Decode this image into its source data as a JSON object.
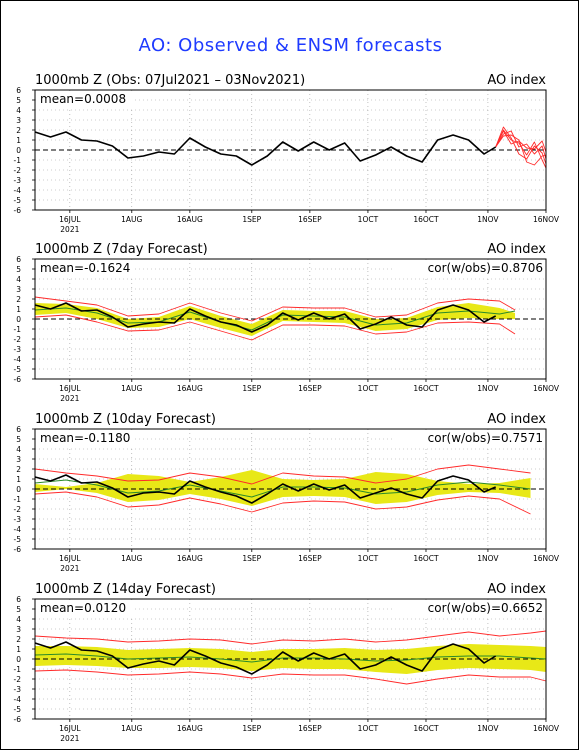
{
  "page": {
    "title": "AO: Observed & ENSM forecasts"
  },
  "colors": {
    "observed": "#000000",
    "forecast_member": "#ff2a2a",
    "ensemble_band": "#e8e817",
    "ensemble_mean": "#2a8a2a",
    "zero_line": "#000000",
    "grid": "#9a9a9a",
    "title": "#1f3bff"
  },
  "chart_data": [
    {
      "type": "line",
      "title": "1000mb Z (Obs: 07Jul2021 – 03Nov2021)",
      "index_label": "AO index",
      "mean_label": "mean=0.0008",
      "cor_label": "",
      "ylim": [
        -6,
        6
      ],
      "yticks": [
        "6",
        "5",
        "4",
        "3",
        "2",
        "1",
        "0",
        "-1",
        "-2",
        "-3",
        "-4",
        "-5",
        "-6"
      ],
      "xticks": [
        "16JUL",
        "1AUG",
        "16AUG",
        "1SEP",
        "16SEP",
        "1OCT",
        "16OCT",
        "1NOV",
        "16NOV"
      ],
      "xticks_day": [
        9,
        25,
        40,
        56,
        71,
        86,
        101,
        117,
        132
      ],
      "year_label": "2021",
      "xlim": [
        0,
        132
      ],
      "grid": true,
      "series": [
        {
          "role": "observed",
          "x": [
            0,
            4,
            8,
            12,
            16,
            20,
            24,
            28,
            32,
            36,
            40,
            44,
            48,
            52,
            56,
            60,
            64,
            68,
            72,
            76,
            80,
            84,
            88,
            92,
            96,
            100,
            104,
            108,
            112,
            116,
            119
          ],
          "values": [
            1.8,
            1.3,
            1.8,
            1.0,
            0.9,
            0.4,
            -0.8,
            -0.6,
            -0.2,
            -0.4,
            1.2,
            0.3,
            -0.4,
            -0.6,
            -1.5,
            -0.6,
            0.8,
            -0.1,
            0.8,
            0.0,
            0.7,
            -1.1,
            -0.5,
            0.3,
            -0.6,
            -1.2,
            1.0,
            1.5,
            1.0,
            -0.4,
            0.3
          ]
        }
      ],
      "forecast_members": [
        {
          "x": [
            119,
            121,
            123,
            125,
            127,
            129,
            131,
            132
          ],
          "values": [
            0.3,
            2.0,
            1.0,
            0.7,
            -0.5,
            0.8,
            -1.0,
            -1.8
          ]
        },
        {
          "x": [
            119,
            121,
            123,
            125,
            127,
            129,
            131,
            132
          ],
          "values": [
            0.3,
            1.6,
            1.9,
            0.3,
            0.6,
            -0.4,
            0.4,
            -0.9
          ]
        },
        {
          "x": [
            119,
            121,
            123,
            125,
            127,
            129,
            131,
            132
          ],
          "values": [
            0.3,
            2.3,
            1.2,
            -0.4,
            -0.9,
            0.4,
            -0.3,
            -1.4
          ]
        },
        {
          "x": [
            119,
            121,
            123,
            125,
            127,
            129,
            131,
            132
          ],
          "values": [
            0.3,
            1.4,
            1.5,
            1.0,
            -1.2,
            -1.5,
            -0.6,
            -0.5
          ]
        },
        {
          "x": [
            119,
            121,
            123,
            125,
            127,
            129,
            131,
            132
          ],
          "values": [
            0.3,
            1.9,
            0.6,
            0.9,
            0.2,
            0.1,
            0.9,
            -0.2
          ]
        }
      ]
    },
    {
      "type": "line",
      "title": "1000mb Z (7day Forecast)",
      "index_label": "AO index",
      "mean_label": "mean=-0.1624",
      "cor_label": "cor(w/obs)=0.8706",
      "ylim": [
        -6,
        6
      ],
      "yticks": [
        "6",
        "5",
        "4",
        "3",
        "2",
        "1",
        "0",
        "-1",
        "-2",
        "-3",
        "-4",
        "-5",
        "-6"
      ],
      "xticks": [
        "16JUL",
        "1AUG",
        "16AUG",
        "1SEP",
        "16SEP",
        "1OCT",
        "16OCT",
        "1NOV",
        "16NOV"
      ],
      "xticks_day": [
        9,
        25,
        40,
        56,
        71,
        86,
        101,
        117,
        132
      ],
      "year_label": "2021",
      "xlim": [
        0,
        132
      ],
      "grid": true,
      "series": [
        {
          "role": "observed",
          "x": [
            0,
            4,
            8,
            12,
            16,
            20,
            24,
            28,
            32,
            36,
            40,
            44,
            48,
            52,
            56,
            60,
            64,
            68,
            72,
            76,
            80,
            84,
            88,
            92,
            96,
            100,
            104,
            108,
            112,
            116,
            119
          ],
          "values": [
            1.4,
            1.0,
            1.6,
            0.8,
            0.9,
            0.2,
            -0.8,
            -0.5,
            -0.3,
            -0.4,
            1.0,
            0.3,
            -0.3,
            -0.6,
            -1.3,
            -0.6,
            0.6,
            -0.1,
            0.6,
            0.0,
            0.5,
            -1.0,
            -0.5,
            0.2,
            -0.6,
            -0.8,
            0.9,
            1.4,
            0.9,
            -0.3,
            0.3
          ]
        },
        {
          "role": "mean",
          "x": [
            0,
            8,
            16,
            24,
            32,
            40,
            48,
            56,
            64,
            72,
            80,
            88,
            96,
            104,
            112,
            120,
            124
          ],
          "values": [
            0.9,
            1.1,
            0.6,
            -0.4,
            -0.3,
            0.7,
            -0.3,
            -1.1,
            0.4,
            0.3,
            0.2,
            -0.6,
            -0.4,
            0.6,
            0.8,
            0.5,
            0.8
          ]
        },
        {
          "role": "upper",
          "x": [
            0,
            8,
            16,
            24,
            32,
            40,
            48,
            56,
            64,
            72,
            80,
            88,
            96,
            104,
            112,
            120,
            124
          ],
          "values": [
            2.2,
            1.8,
            1.4,
            0.3,
            0.5,
            1.6,
            0.6,
            -0.2,
            1.2,
            1.1,
            1.1,
            0.2,
            0.4,
            1.6,
            2.0,
            1.8,
            0.9
          ]
        },
        {
          "role": "lower",
          "x": [
            0,
            8,
            16,
            24,
            32,
            40,
            48,
            56,
            64,
            72,
            80,
            88,
            96,
            104,
            112,
            120,
            124
          ],
          "values": [
            0.2,
            0.4,
            -0.3,
            -1.2,
            -1.1,
            -0.3,
            -1.2,
            -2.1,
            -0.6,
            -0.6,
            -0.7,
            -1.5,
            -1.3,
            -0.4,
            -0.3,
            -0.5,
            -1.5
          ]
        }
      ],
      "band": {
        "x": [
          0,
          8,
          16,
          24,
          32,
          40,
          48,
          56,
          64,
          72,
          80,
          88,
          96,
          104,
          112,
          120,
          124
        ],
        "lower": [
          0.4,
          0.6,
          0.0,
          -0.9,
          -0.8,
          0.0,
          -0.9,
          -1.7,
          -0.2,
          -0.3,
          -0.4,
          -1.2,
          -1.0,
          -0.1,
          0.1,
          0.0,
          0.0
        ],
        "upper": [
          1.6,
          1.5,
          1.1,
          0.0,
          0.2,
          1.3,
          0.3,
          -0.5,
          0.9,
          0.8,
          0.8,
          0.0,
          0.1,
          1.2,
          1.6,
          1.1,
          0.6
        ]
      }
    },
    {
      "type": "line",
      "title": "1000mb Z (10day Forecast)",
      "index_label": "AO index",
      "mean_label": "mean=-0.1180",
      "cor_label": "cor(w/obs)=0.7571",
      "ylim": [
        -6,
        6
      ],
      "yticks": [
        "6",
        "5",
        "4",
        "3",
        "2",
        "1",
        "0",
        "-1",
        "-2",
        "-3",
        "-4",
        "-5",
        "-6"
      ],
      "xticks": [
        "16JUL",
        "1AUG",
        "16AUG",
        "1SEP",
        "16SEP",
        "1OCT",
        "16OCT",
        "1NOV",
        "16NOV"
      ],
      "xticks_day": [
        9,
        25,
        40,
        56,
        71,
        86,
        101,
        117,
        132
      ],
      "year_label": "2021",
      "xlim": [
        0,
        132
      ],
      "grid": true,
      "series": [
        {
          "role": "observed",
          "x": [
            0,
            4,
            8,
            12,
            16,
            20,
            24,
            28,
            32,
            36,
            40,
            44,
            48,
            52,
            56,
            60,
            64,
            68,
            72,
            76,
            80,
            84,
            88,
            92,
            96,
            100,
            104,
            108,
            112,
            116,
            119
          ],
          "values": [
            1.2,
            0.8,
            1.4,
            0.6,
            0.7,
            0.1,
            -0.8,
            -0.4,
            -0.3,
            -0.5,
            0.8,
            0.2,
            -0.3,
            -0.7,
            -1.4,
            -0.5,
            0.5,
            -0.2,
            0.5,
            -0.1,
            0.4,
            -0.9,
            -0.4,
            0.1,
            -0.5,
            -0.9,
            0.8,
            1.3,
            0.9,
            -0.3,
            0.2
          ]
        },
        {
          "role": "mean",
          "x": [
            0,
            8,
            16,
            24,
            32,
            40,
            48,
            56,
            64,
            72,
            80,
            88,
            96,
            104,
            112,
            120,
            128
          ],
          "values": [
            0.6,
            0.9,
            0.4,
            -0.4,
            -0.2,
            0.4,
            -0.2,
            -0.8,
            0.2,
            0.2,
            0.1,
            -0.5,
            -0.3,
            0.4,
            0.7,
            0.4,
            0.0
          ]
        },
        {
          "role": "upper",
          "x": [
            0,
            8,
            16,
            24,
            32,
            40,
            48,
            56,
            64,
            72,
            80,
            88,
            96,
            104,
            112,
            120,
            128
          ],
          "values": [
            2.0,
            1.6,
            1.3,
            0.8,
            0.9,
            1.6,
            1.2,
            0.5,
            1.6,
            1.3,
            1.2,
            0.6,
            1.0,
            2.0,
            2.4,
            2.0,
            1.6
          ]
        },
        {
          "role": "lower",
          "x": [
            0,
            8,
            16,
            24,
            32,
            40,
            48,
            56,
            64,
            72,
            80,
            88,
            96,
            104,
            112,
            120,
            128
          ],
          "values": [
            -0.5,
            -0.3,
            -0.8,
            -1.8,
            -1.6,
            -0.9,
            -1.5,
            -2.3,
            -1.4,
            -1.2,
            -1.3,
            -2.0,
            -1.8,
            -1.1,
            -0.7,
            -1.0,
            -2.5
          ]
        }
      ],
      "band": {
        "x": [
          0,
          8,
          16,
          24,
          32,
          40,
          48,
          56,
          64,
          72,
          80,
          88,
          96,
          104,
          112,
          120,
          128
        ],
        "lower": [
          -0.3,
          0.0,
          -0.4,
          -1.3,
          -1.1,
          -0.5,
          -1.0,
          -1.7,
          -0.8,
          -0.7,
          -0.8,
          -1.5,
          -1.3,
          -0.6,
          -0.3,
          -0.4,
          -0.9
        ]
      }
    },
    {
      "type": "line",
      "title": "1000mb Z (14day Forecast)",
      "index_label": "AO index",
      "mean_label": "mean=0.0120",
      "cor_label": "cor(w/obs)=0.6652",
      "ylim": [
        -6,
        6
      ],
      "yticks": [
        "6",
        "5",
        "4",
        "3",
        "2",
        "1",
        "0",
        "-1",
        "-2",
        "-3",
        "-4",
        "-5",
        "-6"
      ],
      "xticks": [
        "16JUL",
        "1AUG",
        "16AUG",
        "1SEP",
        "16SEP",
        "1OCT",
        "16OCT",
        "1NOV",
        "16NOV"
      ],
      "xticks_day": [
        9,
        25,
        40,
        56,
        71,
        86,
        101,
        117,
        132
      ],
      "year_label": "2021",
      "xlim": [
        0,
        132
      ],
      "grid": true,
      "series": [
        {
          "role": "observed",
          "x": [
            0,
            4,
            8,
            12,
            16,
            20,
            24,
            28,
            32,
            36,
            40,
            44,
            48,
            52,
            56,
            60,
            64,
            68,
            72,
            76,
            80,
            84,
            88,
            92,
            96,
            100,
            104,
            108,
            112,
            116,
            119
          ],
          "values": [
            1.6,
            1.1,
            1.7,
            0.9,
            0.8,
            0.3,
            -0.9,
            -0.5,
            -0.2,
            -0.6,
            0.9,
            0.3,
            -0.4,
            -0.8,
            -1.5,
            -0.6,
            0.7,
            -0.2,
            0.6,
            0.0,
            0.5,
            -1.0,
            -0.6,
            0.2,
            -0.6,
            -1.2,
            0.9,
            1.5,
            1.0,
            -0.4,
            0.3
          ]
        },
        {
          "role": "mean",
          "x": [
            0,
            8,
            16,
            24,
            32,
            40,
            48,
            56,
            64,
            72,
            80,
            88,
            96,
            104,
            112,
            120,
            128,
            132
          ],
          "values": [
            0.4,
            0.5,
            0.3,
            0.0,
            0.1,
            0.2,
            0.0,
            -0.3,
            0.1,
            0.1,
            0.0,
            -0.2,
            -0.1,
            0.2,
            0.3,
            0.3,
            0.1,
            0.0
          ]
        },
        {
          "role": "upper",
          "x": [
            0,
            8,
            16,
            24,
            32,
            40,
            48,
            56,
            64,
            72,
            80,
            88,
            96,
            104,
            112,
            120,
            128,
            132
          ],
          "values": [
            2.3,
            2.1,
            2.0,
            1.7,
            1.8,
            2.0,
            1.9,
            1.5,
            1.9,
            1.8,
            2.0,
            1.7,
            1.9,
            2.3,
            2.7,
            2.3,
            2.6,
            2.8
          ]
        },
        {
          "role": "lower",
          "x": [
            0,
            8,
            16,
            24,
            32,
            40,
            48,
            56,
            64,
            72,
            80,
            88,
            96,
            104,
            112,
            120,
            128,
            132
          ],
          "values": [
            -1.2,
            -1.1,
            -1.3,
            -1.6,
            -1.5,
            -1.3,
            -1.5,
            -1.9,
            -1.5,
            -1.6,
            -1.6,
            -2.0,
            -2.5,
            -2.0,
            -1.6,
            -1.8,
            -1.8,
            -2.2
          ]
        }
      ],
      "band": {
        "x": [
          0,
          8,
          16,
          24,
          32,
          40,
          48,
          56,
          64,
          72,
          80,
          88,
          96,
          104,
          112,
          120,
          128,
          132
        ],
        "lower": [
          -0.7,
          -0.6,
          -0.7,
          -0.9,
          -0.9,
          -0.8,
          -0.9,
          -1.2,
          -0.9,
          -1.0,
          -1.0,
          -1.3,
          -1.5,
          -1.1,
          -0.9,
          -1.0,
          -1.1,
          -1.3
        ],
        "upper": [
          1.3,
          1.3,
          1.2,
          0.9,
          1.0,
          1.1,
          1.0,
          0.7,
          1.0,
          1.0,
          1.1,
          0.9,
          1.0,
          1.3,
          1.5,
          1.4,
          1.3,
          1.2
        ]
      }
    }
  ]
}
